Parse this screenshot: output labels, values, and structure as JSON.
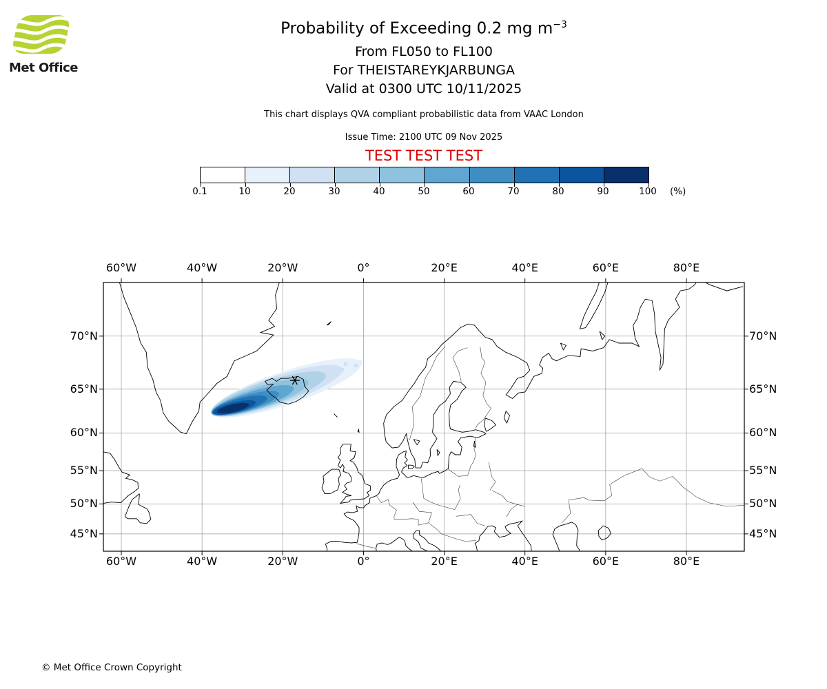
{
  "logo": {
    "text": "Met Office",
    "green": "#b5d334"
  },
  "header": {
    "title_main": "Probability of Exceeding 0.2 mg m",
    "title_exp": "−3",
    "line1": "From FL050 to FL100",
    "line2": "For THEISTAREYKJARBUNGA",
    "line3": "Valid at 0300 UTC 10/11/2025",
    "note": "This chart displays QVA compliant probabilistic data from VAAC London",
    "issue_time": "Issue Time: 2100 UTC 09 Nov 2025",
    "test_banner": "TEST TEST TEST",
    "test_color": "#dd0000"
  },
  "colorbar": {
    "tick_labels": [
      "0.1",
      "10",
      "20",
      "30",
      "40",
      "50",
      "60",
      "70",
      "80",
      "90",
      "100"
    ],
    "unit": "(%)",
    "colors": [
      "#ffffff",
      "#e7f1fb",
      "#cfe1f2",
      "#b0d2e7",
      "#8fc2de",
      "#60a6d2",
      "#3e8ec4",
      "#2171b5",
      "#0b559f",
      "#08306b"
    ]
  },
  "map": {
    "x_labels": [
      "60°W",
      "40°W",
      "20°W",
      "0°",
      "20°E",
      "40°E",
      "60°E",
      "80°E"
    ],
    "y_labels": [
      "70°N",
      "65°N",
      "60°N",
      "55°N",
      "50°N",
      "45°N"
    ]
  },
  "chart_data": {
    "type": "heatmap",
    "title": "Probability of Exceeding 0.2 mg m⁻³",
    "flight_levels": "FL050 to FL100",
    "volcano": "THEISTAREYKJARBUNGA",
    "valid_time": "0300 UTC 10/11/2025",
    "issue_time": "2100 UTC 09 Nov 2025",
    "source": "QVA compliant probabilistic data from VAAC London",
    "legend": {
      "unit": "%",
      "thresholds": [
        0.1,
        10,
        20,
        30,
        40,
        50,
        60,
        70,
        80,
        90,
        100
      ],
      "position": "top-center horizontal"
    },
    "x_axis": {
      "label_type": "longitude",
      "ticks": [
        "60°W",
        "40°W",
        "20°W",
        "0°",
        "20°E",
        "40°E",
        "60°E",
        "80°E"
      ]
    },
    "y_axis": {
      "label_type": "latitude",
      "ticks": [
        "70°N",
        "65°N",
        "60°N",
        "55°N",
        "50°N",
        "45°N"
      ]
    },
    "grid": true,
    "plume": {
      "shape": "elongated band oriented SW-NE crossing Iceland",
      "extent": {
        "west_lon": -38,
        "east_lon": -1,
        "south_lat": 61.5,
        "north_lat": 68
      },
      "core_max_probability": {
        "lon_range": [
          -34,
          -25
        ],
        "lat_range": [
          62,
          64
        ],
        "probability_pct": "90-100"
      },
      "gradient": "probability decreases from the dark SW core toward the pale NE tip"
    },
    "volcano_marker": {
      "lon": -17,
      "lat": 65.9
    }
  },
  "footer": {
    "copyright": "© Met Office Crown Copyright"
  }
}
